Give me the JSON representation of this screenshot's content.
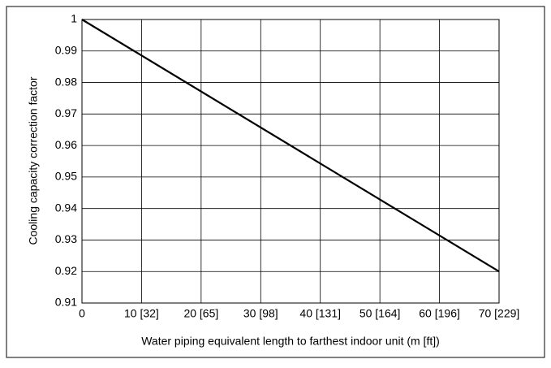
{
  "chart_data": {
    "type": "line",
    "xlabel": "Water piping equivalent length to farthest indoor unit (m [ft])",
    "ylabel": "Cooling capacity correction factor",
    "x": [
      0,
      70
    ],
    "series": [
      {
        "color": "#000000",
        "values": [
          1,
          0.92
        ]
      }
    ],
    "xlim": [
      0,
      70
    ],
    "xticks": [
      0,
      {
        "value": 10,
        "label": "10 [32]"
      },
      {
        "value": 20,
        "label": "20 [65]"
      },
      {
        "value": 30,
        "label": "30 [98]"
      },
      {
        "value": 40,
        "label": "40 [131]"
      },
      {
        "value": 50,
        "label": "50 [164]"
      },
      {
        "value": 60,
        "label": "60 [196]"
      },
      {
        "value": 70,
        "label": "70 [229]"
      }
    ],
    "ylim": [
      0.91,
      1
    ],
    "yticks": [
      0.91,
      0.92,
      0.93,
      0.94,
      0.95,
      0.96,
      0.97,
      0.98,
      0.99,
      1
    ],
    "grid": true
  }
}
